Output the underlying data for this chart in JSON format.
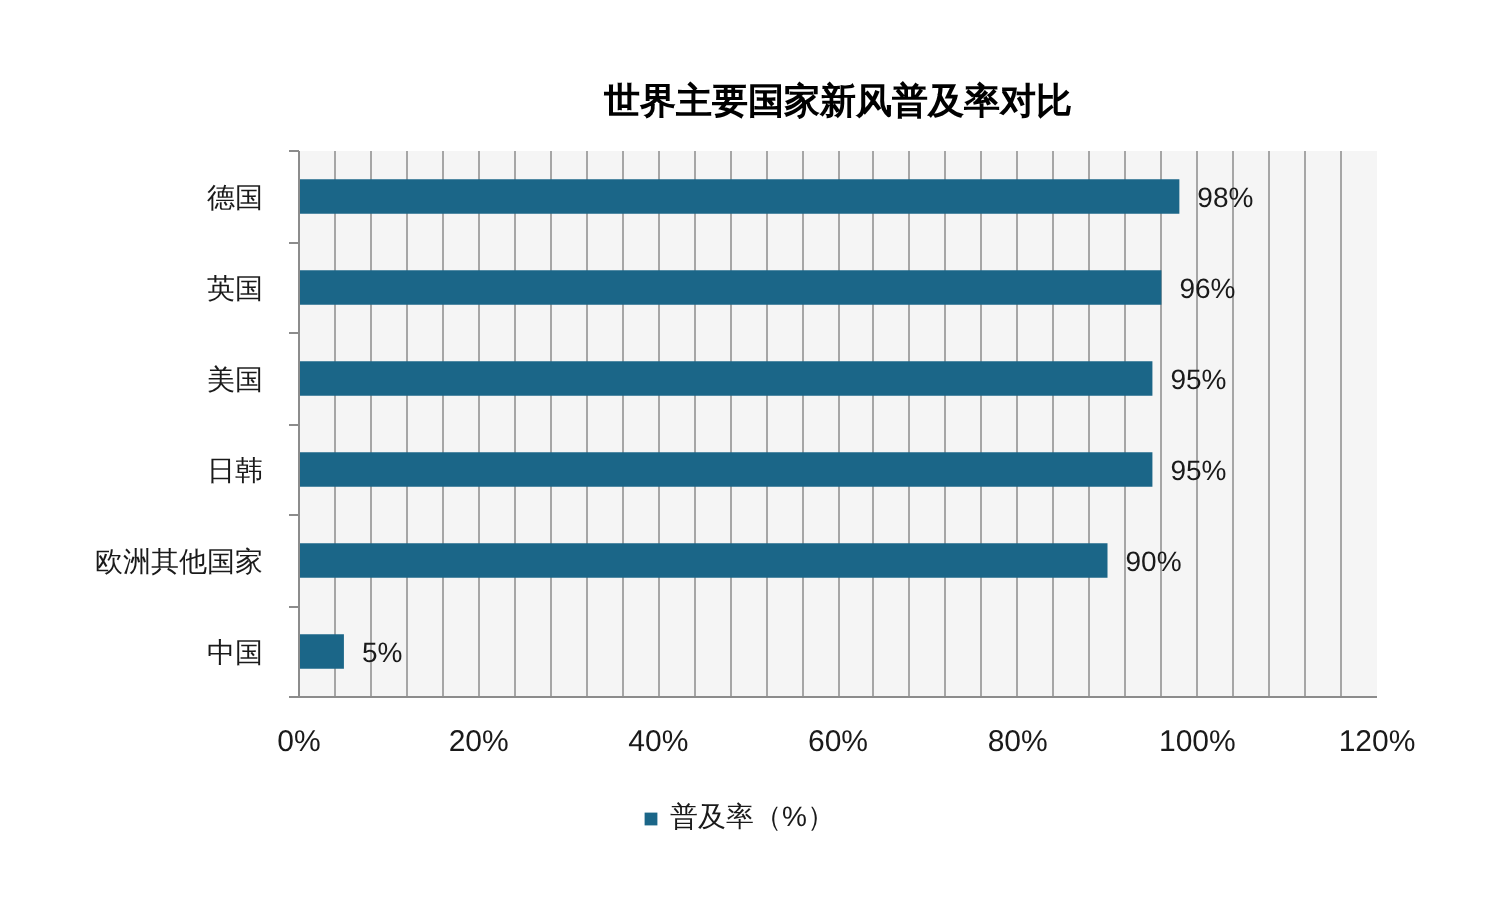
{
  "chart_data": {
    "type": "bar",
    "orientation": "horizontal",
    "title": "世界主要国家新风普及率对比",
    "categories": [
      "德国",
      "英国",
      "美国",
      "日韩",
      "欧洲其他国家",
      "中国"
    ],
    "series": [
      {
        "name": "普及率（%）",
        "color": "#1b6688",
        "values": [
          98,
          96,
          95,
          95,
          90,
          5
        ],
        "value_labels": [
          "98%",
          "96%",
          "95%",
          "95%",
          "90%",
          "5%"
        ]
      }
    ],
    "xlim": [
      0,
      120
    ],
    "xticks": [
      {
        "value": 0,
        "label": "0%"
      },
      {
        "value": 4,
        "label": null
      },
      {
        "value": 8,
        "label": null
      },
      {
        "value": 12,
        "label": null
      },
      {
        "value": 16,
        "label": null
      },
      {
        "value": 20,
        "label": "20%"
      },
      {
        "value": 24,
        "label": null
      },
      {
        "value": 28,
        "label": null
      },
      {
        "value": 32,
        "label": null
      },
      {
        "value": 36,
        "label": null
      },
      {
        "value": 40,
        "label": "40%"
      },
      {
        "value": 44,
        "label": null
      },
      {
        "value": 48,
        "label": null
      },
      {
        "value": 52,
        "label": null
      },
      {
        "value": 56,
        "label": null
      },
      {
        "value": 60,
        "label": "60%"
      },
      {
        "value": 64,
        "label": null
      },
      {
        "value": 68,
        "label": null
      },
      {
        "value": 72,
        "label": null
      },
      {
        "value": 76,
        "label": null
      },
      {
        "value": 80,
        "label": "80%"
      },
      {
        "value": 84,
        "label": null
      },
      {
        "value": 88,
        "label": null
      },
      {
        "value": 92,
        "label": null
      },
      {
        "value": 96,
        "label": null
      },
      {
        "value": 100,
        "label": "100%"
      },
      {
        "value": 104,
        "label": null
      },
      {
        "value": 108,
        "label": null
      },
      {
        "value": 112,
        "label": null
      },
      {
        "value": 116,
        "label": null
      },
      {
        "value": 120,
        "label": "120%"
      }
    ],
    "grid": "x",
    "legend": "bottom"
  }
}
